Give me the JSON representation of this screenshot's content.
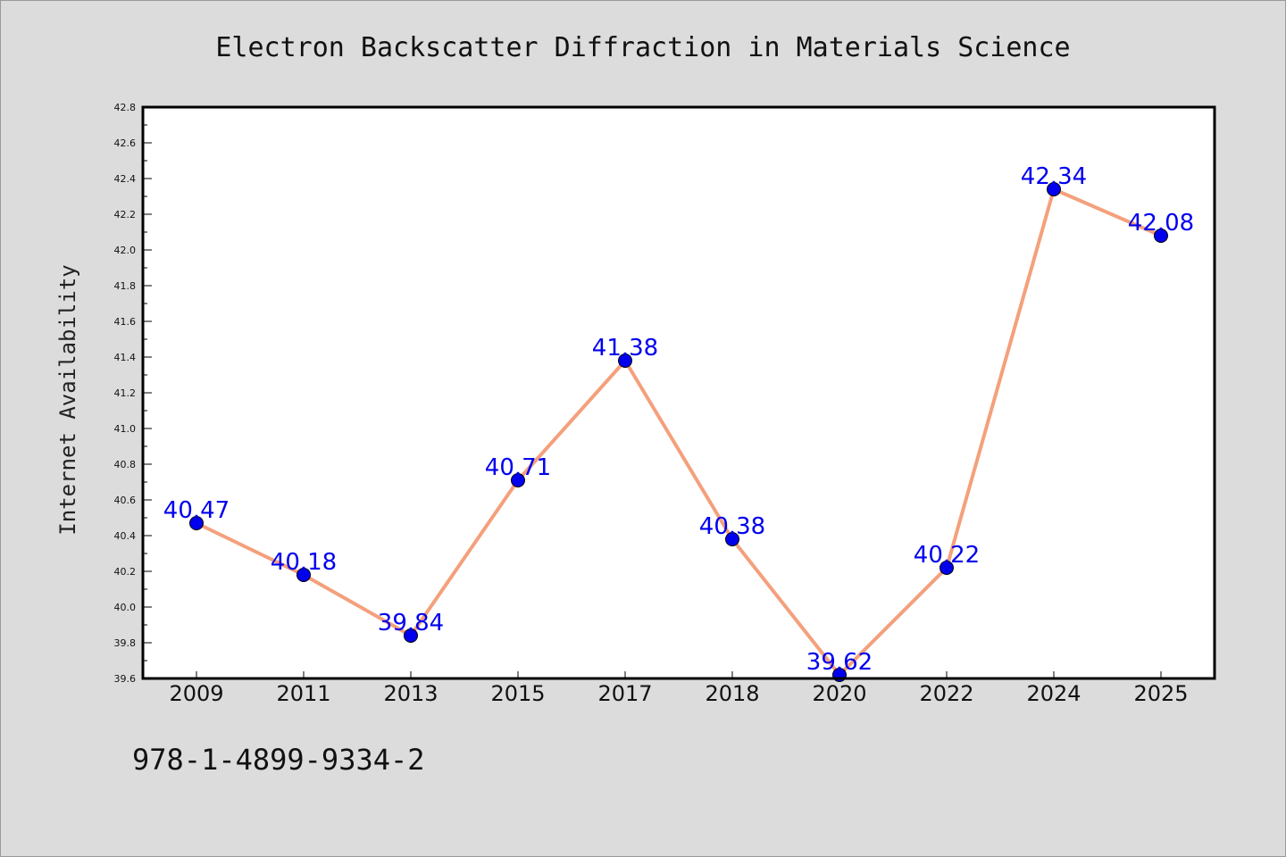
{
  "chart_data": {
    "type": "line",
    "title": "Electron Backscatter Diffraction in Materials Science",
    "xlabel": "",
    "ylabel": "Internet Availability",
    "categories": [
      "2009",
      "2011",
      "2013",
      "2015",
      "2017",
      "2018",
      "2020",
      "2022",
      "2024",
      "2025"
    ],
    "series": [
      {
        "values": [
          40.47,
          40.18,
          39.84,
          40.71,
          41.38,
          40.38,
          39.62,
          40.22,
          42.34,
          42.08
        ],
        "labels": [
          "40.47",
          "40.18",
          "39.84",
          "40.71",
          "41.38",
          "40.38",
          "39.62",
          "40.22",
          "42.34",
          "42.08"
        ]
      }
    ],
    "ylim": [
      39.6,
      42.8
    ],
    "yticks": [
      "39.6",
      "39.8",
      "40.0",
      "40.2",
      "40.4",
      "40.6",
      "40.8",
      "41.0",
      "41.2",
      "41.4",
      "41.6",
      "41.8",
      "42.0",
      "42.2",
      "42.4",
      "42.6",
      "42.8"
    ],
    "grid": false,
    "legend": "none",
    "line_color": "#f4a07c",
    "marker_color": "#0000ee",
    "label_color": "#0000ee",
    "plot_background": "#ffffff",
    "page_background": "#dcdcdc"
  },
  "footer": {
    "isbn": "978-1-4899-9334-2"
  }
}
